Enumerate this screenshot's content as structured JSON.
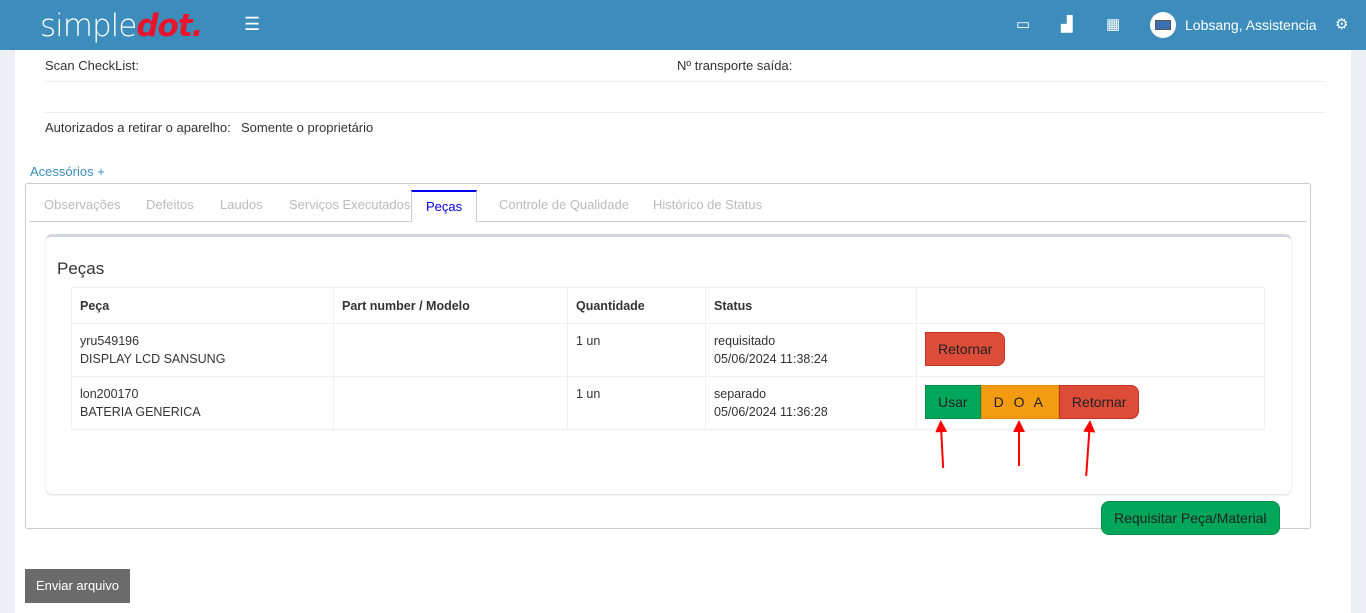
{
  "header": {
    "logo_main": "simple",
    "logo_accent": "dot.",
    "user": "Lobsang, Assistencia",
    "icons": [
      "menu-icon",
      "laptop-icon",
      "bar-chart-icon",
      "calendar-icon",
      "avatar",
      "gears-icon"
    ]
  },
  "form": {
    "scan_label": "Scan CheckList:",
    "transport_label": "Nº transporte saída:",
    "authorized_label": "Autorizados a retirar o aparelho:",
    "authorized_value": "Somente o proprietário",
    "accessories_link": "Acessórios +"
  },
  "tabs": [
    "Observações",
    "Defeitos",
    "Laudos",
    "Serviços Executados",
    "Peças",
    "Controle de Qualidade",
    "Histórico de Status"
  ],
  "active_tab": "Peças",
  "parts": {
    "title": "Peças",
    "columns": [
      "Peça",
      "Part number / Modelo",
      "Quantidade",
      "Status",
      ""
    ],
    "rows": [
      {
        "code": "yru549196",
        "name": "DISPLAY LCD SANSUNG",
        "part_number": "",
        "qty": "1 un",
        "status": "requisitado",
        "date": "05/06/2024 11:38:24",
        "actions": [
          "Retornar"
        ]
      },
      {
        "code": "lon200170",
        "name": "BATERIA GENERICA",
        "part_number": "",
        "qty": "1 un",
        "status": "separado",
        "date": "05/06/2024 11:36:28",
        "actions": [
          "Usar",
          "D O A",
          "Retornar"
        ]
      }
    ],
    "request_button": "Requisitar Peça/Material"
  },
  "send_button": "Enviar arquivo",
  "colors": {
    "topbar": "#3c8dbc",
    "accent_red": "#e8142b",
    "success": "#00a65a",
    "warning": "#f39c12",
    "danger": "#dd4b39"
  }
}
